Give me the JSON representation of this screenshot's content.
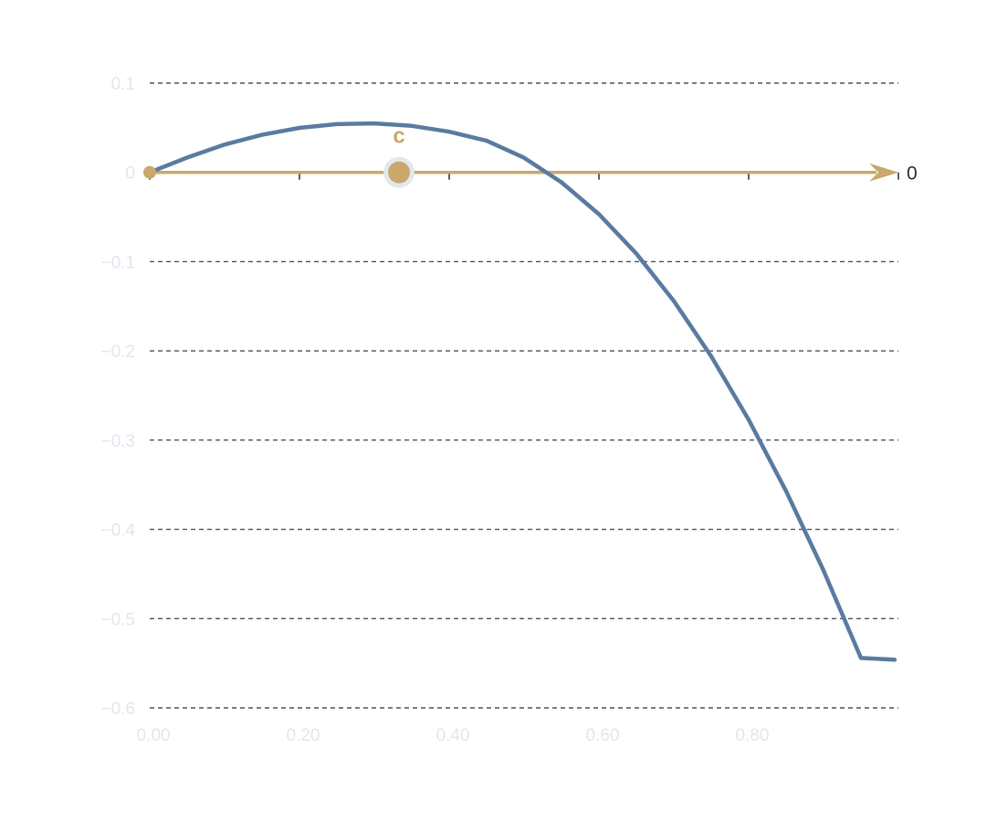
{
  "chart_data": {
    "type": "line",
    "title": "",
    "xlabel": "",
    "ylabel": "",
    "xlim": [
      0,
      1
    ],
    "ylim": [
      -0.6,
      0.1
    ],
    "x_ticks": [
      0,
      0.2,
      0.4,
      0.6,
      0.8
    ],
    "x_tick_labels": [
      "0.00",
      "0.20",
      "0.40",
      "0.60",
      "0.80"
    ],
    "y_ticks": [
      0.1,
      0,
      -0.1,
      -0.2,
      -0.3,
      -0.4,
      -0.5,
      -0.6
    ],
    "y_tick_labels": [
      "0.1",
      "0",
      "−0.1",
      "−0.2",
      "−0.3",
      "−0.4",
      "−0.5",
      "−0.6"
    ],
    "grid": "horizontal dashed",
    "series": [
      {
        "color": "#5a7ba0",
        "x": [
          0,
          0.05,
          0.1,
          0.15,
          0.2,
          0.25,
          0.3,
          0.35,
          0.4,
          0.45,
          0.5,
          0.55,
          0.6,
          0.65,
          0.7,
          0.75,
          0.8,
          0.85,
          0.9,
          0.95,
          0.995
        ],
        "y": [
          0,
          0.0166,
          0.0311,
          0.0421,
          0.0499,
          0.0541,
          0.0549,
          0.0521,
          0.0456,
          0.0354,
          0.0164,
          -0.0111,
          -0.0469,
          -0.0911,
          -0.1441,
          -0.2061,
          -0.2771,
          -0.3571,
          -0.4461,
          -0.5441,
          -0.5461
        ]
      }
    ],
    "reference_axis": {
      "label": "0",
      "y": 0,
      "color": "#c9a86a"
    },
    "markers": [
      {
        "label": "c",
        "x": 0.333,
        "y": 0,
        "color": "#c9a86a"
      },
      {
        "label": "",
        "x": 0,
        "y": 0,
        "color": "#c9a86a"
      }
    ]
  }
}
